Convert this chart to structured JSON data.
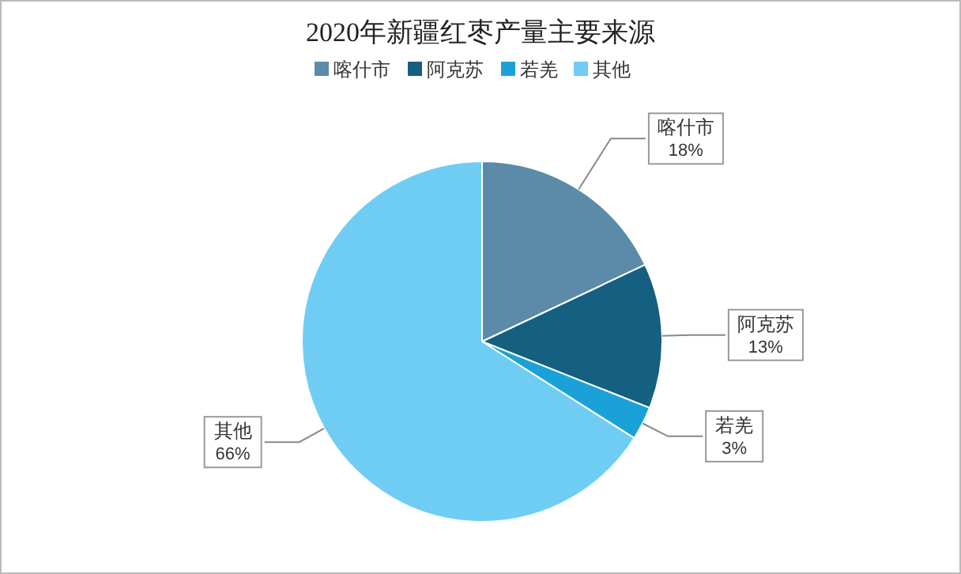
{
  "chart_data": {
    "type": "pie",
    "title": "2020年新疆红枣产量主要来源",
    "categories": [
      "喀什市",
      "阿克苏",
      "若羌",
      "其他"
    ],
    "values": [
      18,
      13,
      3,
      66
    ],
    "colors": [
      "#5b8ba8",
      "#155f80",
      "#1aa2d8",
      "#6fcdf3"
    ],
    "value_labels": [
      "18%",
      "13%",
      "3%",
      "66%"
    ],
    "legend": "top"
  }
}
